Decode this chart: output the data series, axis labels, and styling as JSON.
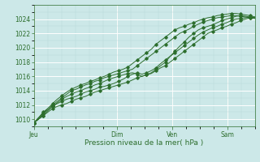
{
  "xlabel": "Pression niveau de la mer( hPa )",
  "bg_color": "#cce8e8",
  "grid_color": "#aad4d4",
  "major_grid_color": "#88bbbb",
  "line_color": "#2d6e2d",
  "ylim": [
    1009,
    1026
  ],
  "yticks": [
    1010,
    1012,
    1014,
    1016,
    1018,
    1020,
    1022,
    1024
  ],
  "day_labels": [
    "Jeu",
    "Dim",
    "Ven",
    "Sam"
  ],
  "day_positions": [
    0.0,
    0.375,
    0.625,
    0.875
  ],
  "n_points": 48,
  "series": [
    [
      1009.5,
      1010.0,
      1010.5,
      1011.0,
      1011.5,
      1011.8,
      1012.0,
      1012.2,
      1012.5,
      1012.8,
      1013.0,
      1013.2,
      1013.5,
      1013.8,
      1014.0,
      1014.2,
      1014.4,
      1014.6,
      1014.8,
      1015.0,
      1015.2,
      1015.5,
      1015.8,
      1016.0,
      1016.2,
      1016.4,
      1016.8,
      1017.2,
      1017.5,
      1018.0,
      1018.5,
      1019.0,
      1019.5,
      1020.0,
      1020.5,
      1021.0,
      1021.5,
      1022.0,
      1022.3,
      1022.5,
      1022.8,
      1023.0,
      1023.3,
      1023.5,
      1023.8,
      1024.0,
      1024.2,
      1024.3
    ],
    [
      1009.5,
      1010.2,
      1010.8,
      1011.3,
      1011.8,
      1012.2,
      1012.5,
      1012.8,
      1013.0,
      1013.2,
      1013.5,
      1013.8,
      1014.0,
      1014.2,
      1014.5,
      1014.6,
      1014.8,
      1015.0,
      1015.3,
      1015.6,
      1016.0,
      1016.3,
      1016.5,
      1016.3,
      1016.5,
      1016.8,
      1017.2,
      1017.8,
      1018.3,
      1018.8,
      1019.3,
      1019.8,
      1020.3,
      1020.8,
      1021.3,
      1021.8,
      1022.2,
      1022.5,
      1022.8,
      1023.0,
      1023.3,
      1023.5,
      1023.8,
      1024.0,
      1024.1,
      1024.2,
      1024.3,
      1024.2
    ],
    [
      1009.5,
      1010.0,
      1010.5,
      1011.2,
      1011.8,
      1012.3,
      1012.8,
      1013.2,
      1013.5,
      1013.8,
      1014.0,
      1014.3,
      1014.5,
      1014.8,
      1015.0,
      1015.3,
      1015.6,
      1015.8,
      1016.0,
      1016.2,
      1016.4,
      1016.5,
      1016.3,
      1016.0,
      1016.2,
      1016.5,
      1017.0,
      1017.5,
      1018.0,
      1018.8,
      1019.5,
      1020.2,
      1020.8,
      1021.5,
      1022.0,
      1022.5,
      1022.8,
      1023.0,
      1023.2,
      1023.5,
      1023.8,
      1024.0,
      1024.2,
      1024.4,
      1024.5,
      1024.4,
      1024.3,
      1024.2
    ],
    [
      1009.5,
      1010.2,
      1011.0,
      1011.5,
      1012.0,
      1012.5,
      1013.0,
      1013.5,
      1014.0,
      1014.2,
      1014.5,
      1014.8,
      1015.0,
      1015.3,
      1015.5,
      1015.8,
      1016.0,
      1016.2,
      1016.4,
      1016.6,
      1016.8,
      1017.0,
      1017.5,
      1018.0,
      1018.5,
      1019.0,
      1019.5,
      1020.0,
      1020.5,
      1021.0,
      1021.5,
      1022.0,
      1022.3,
      1022.6,
      1023.0,
      1023.3,
      1023.6,
      1023.8,
      1024.0,
      1024.2,
      1024.3,
      1024.4,
      1024.5,
      1024.5,
      1024.4,
      1024.3,
      1024.2,
      1024.1
    ],
    [
      1009.5,
      1010.0,
      1010.8,
      1011.5,
      1012.2,
      1012.8,
      1013.3,
      1013.8,
      1014.2,
      1014.5,
      1014.8,
      1015.0,
      1015.3,
      1015.5,
      1015.8,
      1016.0,
      1016.3,
      1016.6,
      1016.8,
      1017.0,
      1017.3,
      1017.8,
      1018.3,
      1018.8,
      1019.3,
      1019.8,
      1020.5,
      1021.0,
      1021.5,
      1022.0,
      1022.5,
      1022.8,
      1023.0,
      1023.3,
      1023.5,
      1023.8,
      1024.0,
      1024.2,
      1024.3,
      1024.5,
      1024.6,
      1024.7,
      1024.8,
      1024.8,
      1024.7,
      1024.6,
      1024.5,
      1024.3
    ]
  ]
}
